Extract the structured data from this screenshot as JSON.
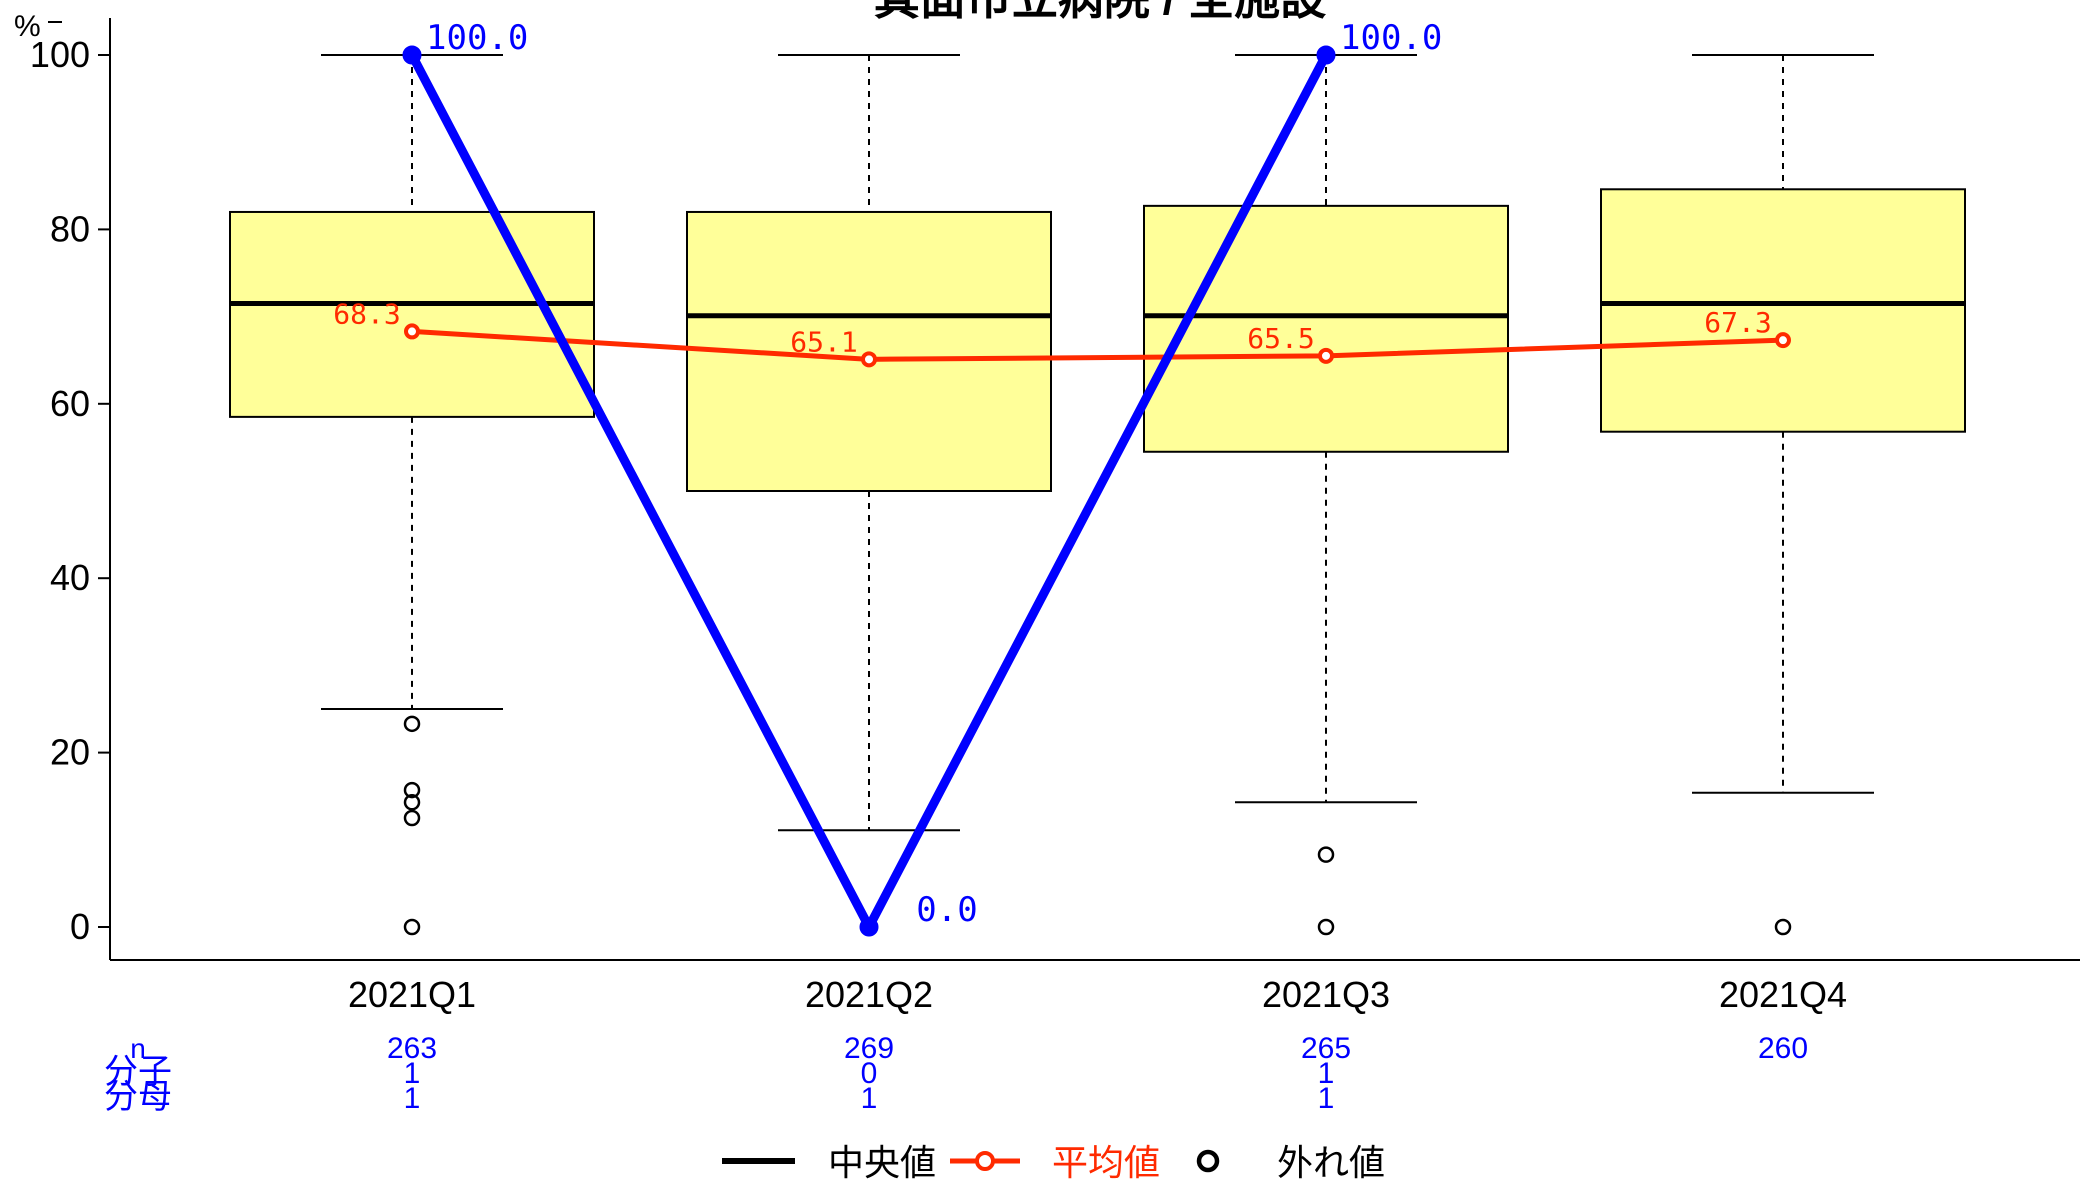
{
  "chart_data": {
    "type": "box",
    "title": "箕面市立病院 / 全施設",
    "ylabel": "%",
    "ylim": [
      0,
      100
    ],
    "yticks": [
      0,
      20,
      40,
      60,
      80,
      100
    ],
    "categories": [
      "2021Q1",
      "2021Q2",
      "2021Q3",
      "2021Q4"
    ],
    "boxes": [
      {
        "q1": 58.5,
        "median": 71.5,
        "q3": 82.0,
        "whisker_low": 25.0,
        "whisker_high": 100,
        "outliers": [
          23.3,
          15.7,
          14.3,
          12.5,
          0
        ]
      },
      {
        "q1": 50.0,
        "median": 70.1,
        "q3": 82.0,
        "whisker_low": 11.1,
        "whisker_high": 100,
        "outliers": [
          0
        ]
      },
      {
        "q1": 54.5,
        "median": 70.1,
        "q3": 82.7,
        "whisker_low": 14.3,
        "whisker_high": 100,
        "outliers": [
          8.3,
          0
        ]
      },
      {
        "q1": 56.8,
        "median": 71.5,
        "q3": 84.6,
        "whisker_low": 15.4,
        "whisker_high": 100,
        "outliers": [
          0
        ]
      }
    ],
    "series": [
      {
        "name": "平均値",
        "values": [
          68.3,
          65.1,
          65.5,
          67.3
        ],
        "labels": [
          "68.3",
          "65.1",
          "65.5",
          "67.3"
        ],
        "color": "#ff2a00"
      },
      {
        "values": [
          100,
          0,
          100,
          null
        ],
        "labels": [
          "100.0",
          "0.0",
          "100.0",
          null
        ],
        "color": "#0000ff"
      }
    ],
    "table": {
      "row_labels": [
        "n",
        "分子",
        "分母"
      ],
      "rows": [
        [
          "263",
          "269",
          "265",
          "260"
        ],
        [
          "1",
          "0",
          "1",
          ""
        ],
        [
          "1",
          "1",
          "1",
          ""
        ]
      ]
    },
    "legend": {
      "position": "bottom",
      "items": [
        {
          "label": "中央値",
          "color": "#000000"
        },
        {
          "label": "平均値",
          "color": "#ff2a00"
        },
        {
          "label": "外れ値",
          "color": "#000000"
        }
      ]
    },
    "colors": {
      "box_fill": "#ffff99",
      "hospital": "#0000ff",
      "mean": "#ff2a00",
      "table_text": "#0000ff"
    }
  }
}
